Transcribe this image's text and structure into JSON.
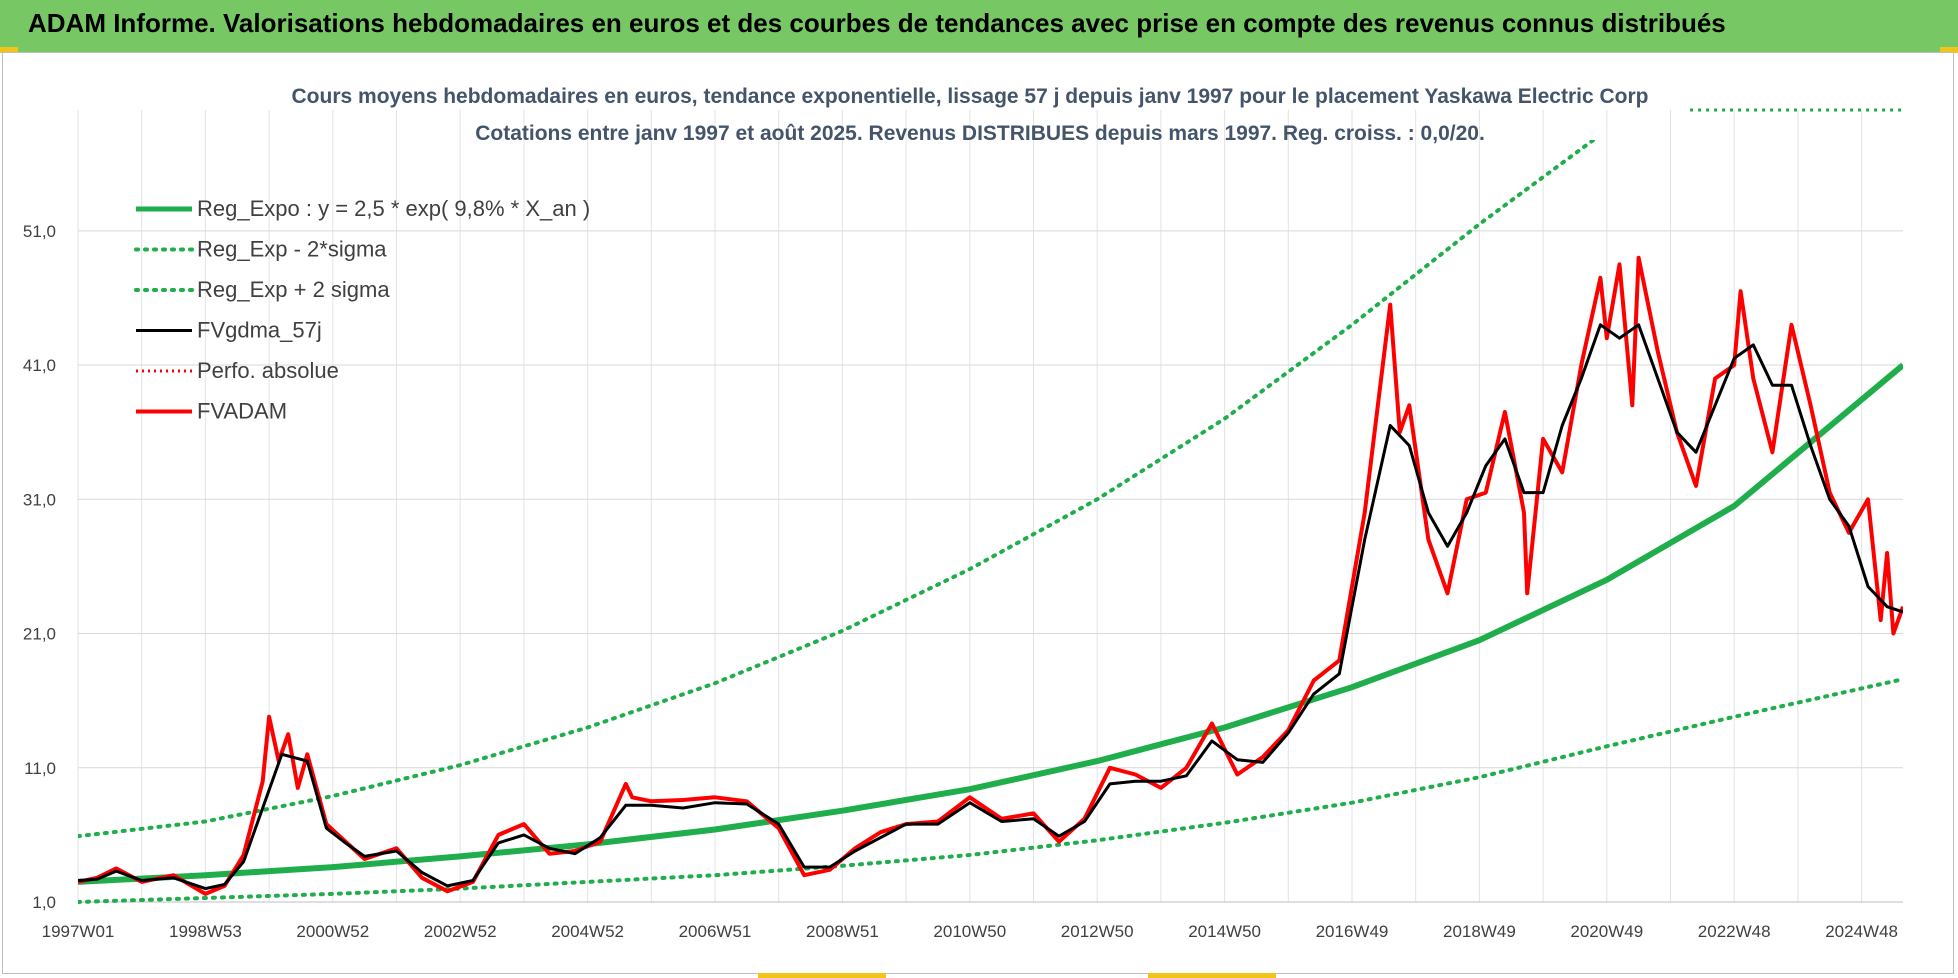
{
  "header": {
    "title": "ADAM Informe. Valorisations hebdomadaires en euros et des courbes de tendances avec prise en compte des revenus connus distribués"
  },
  "colors": {
    "banner": "#77c765",
    "green": "#1fae4b",
    "red": "#ff0000",
    "black": "#000000",
    "accent": "#f0c419"
  },
  "chart_data": {
    "type": "line",
    "title": "Cours moyens hebdomadaires en euros, tendance exponentielle, lissage 57 j depuis janv 1997  pour le placement Yaskawa Electric Corp",
    "subtitle": "Cotations entre janv 1997 et août 2025.  Revenus DISTRIBUES depuis mars 1997. Reg. croiss. : 0,0/20.",
    "xlabel": "",
    "ylabel": "",
    "ylim": [
      1,
      60
    ],
    "xlim": [
      1997.0,
      2025.65
    ],
    "yticks": [
      "1,0",
      "11,0",
      "21,0",
      "31,0",
      "41,0",
      "51,0"
    ],
    "ytick_values": [
      1,
      11,
      21,
      31,
      41,
      51
    ],
    "xticks": [
      "1997W01",
      "1998W53",
      "2000W52",
      "2002W52",
      "2004W52",
      "2006W51",
      "2008W51",
      "2010W50",
      "2012W50",
      "2014W50",
      "2016W49",
      "2018W49",
      "2020W49",
      "2022W48",
      "2024W48"
    ],
    "xtick_values": [
      1997.0,
      1999.0,
      2001.0,
      2003.0,
      2005.0,
      2007.0,
      2009.0,
      2011.0,
      2013.0,
      2015.0,
      2017.0,
      2019.0,
      2021.0,
      2023.0,
      2025.0
    ],
    "grid": true,
    "legend_position": "top-left",
    "series": [
      {
        "name": "Reg_Expo : y = 2,5 * exp( 9,8% *  X_an )",
        "style": "solid-green",
        "x": [
          1997.0,
          1999.0,
          2001.0,
          2003.0,
          2005.0,
          2007.0,
          2009.0,
          2011.0,
          2013.0,
          2015.0,
          2017.0,
          2019.0,
          2021.0,
          2023.0,
          2025.65
        ],
        "values": [
          2.5,
          3.0,
          3.6,
          4.4,
          5.3,
          6.4,
          7.8,
          9.4,
          11.5,
          14.0,
          17.0,
          20.5,
          25.0,
          30.5,
          41.0
        ]
      },
      {
        "name": "Reg_Exp - 2*sigma",
        "style": "dotted-green",
        "x": [
          1997.0,
          1999.0,
          2001.0,
          2003.0,
          2005.0,
          2007.0,
          2009.0,
          2011.0,
          2013.0,
          2015.0,
          2017.0,
          2019.0,
          2021.0,
          2023.0,
          2025.65
        ],
        "values": [
          1.0,
          1.3,
          1.6,
          2.0,
          2.5,
          3.0,
          3.7,
          4.5,
          5.6,
          6.9,
          8.4,
          10.3,
          12.6,
          14.8,
          17.6
        ]
      },
      {
        "name": "Reg_Exp + 2 sigma",
        "style": "dotted-green",
        "x": [
          1997.0,
          1999.0,
          2001.0,
          2003.0,
          2005.0,
          2007.0,
          2009.0,
          2011.0,
          2013.0,
          2015.0,
          2017.0,
          2019.0,
          2021.0,
          2023.0
        ],
        "values": [
          5.9,
          7.0,
          8.9,
          11.2,
          14.0,
          17.3,
          21.2,
          25.8,
          31.0,
          37.0,
          44.0,
          51.5,
          58.5,
          65.0
        ]
      },
      {
        "name": "FVgdma_57j",
        "style": "solid-black",
        "x": [
          1997.0,
          1997.3,
          1997.6,
          1998.0,
          1998.5,
          1999.0,
          1999.3,
          1999.6,
          1999.9,
          2000.2,
          2000.6,
          2000.9,
          2001.2,
          2001.5,
          2002.0,
          2002.4,
          2002.8,
          2003.2,
          2003.6,
          2004.0,
          2004.4,
          2004.8,
          2005.2,
          2005.6,
          2006.0,
          2006.5,
          2007.0,
          2007.5,
          2008.0,
          2008.4,
          2008.8,
          2009.2,
          2009.6,
          2010.0,
          2010.5,
          2011.0,
          2011.5,
          2012.0,
          2012.4,
          2012.8,
          2013.2,
          2013.6,
          2014.0,
          2014.4,
          2014.8,
          2015.2,
          2015.6,
          2016.0,
          2016.4,
          2016.8,
          2017.2,
          2017.6,
          2017.9,
          2018.2,
          2018.5,
          2018.8,
          2019.1,
          2019.4,
          2019.7,
          2020.0,
          2020.3,
          2020.6,
          2020.9,
          2021.2,
          2021.5,
          2021.8,
          2022.1,
          2022.4,
          2022.7,
          2023.0,
          2023.3,
          2023.6,
          2023.9,
          2024.2,
          2024.5,
          2024.8,
          2025.1,
          2025.4,
          2025.65
        ],
        "values": [
          2.6,
          2.7,
          3.3,
          2.6,
          2.8,
          2.0,
          2.3,
          4.0,
          8.0,
          12.0,
          11.5,
          6.5,
          5.4,
          4.4,
          4.8,
          3.2,
          2.2,
          2.6,
          5.4,
          6.0,
          5.0,
          4.6,
          5.8,
          8.2,
          8.2,
          8.0,
          8.4,
          8.3,
          6.8,
          3.6,
          3.6,
          4.8,
          5.8,
          6.8,
          6.8,
          8.4,
          7.0,
          7.2,
          5.9,
          7.0,
          9.8,
          10.0,
          10.0,
          10.4,
          13.0,
          11.6,
          11.4,
          13.6,
          16.5,
          18.0,
          28.0,
          36.5,
          35.0,
          30.0,
          27.5,
          30.0,
          33.5,
          35.5,
          31.5,
          31.5,
          36.5,
          40.0,
          44.0,
          43.0,
          44.0,
          40.0,
          36.0,
          34.5,
          38.0,
          41.5,
          42.5,
          39.5,
          39.5,
          35.0,
          31.0,
          29.0,
          24.5,
          23.0,
          22.6
        ]
      },
      {
        "name": "Perfo. absolue",
        "style": "dotted-red",
        "x": [],
        "values": []
      },
      {
        "name": "FVADAM",
        "style": "solid-red",
        "x": [
          1997.0,
          1997.3,
          1997.6,
          1998.0,
          1998.5,
          1999.0,
          1999.3,
          1999.6,
          1999.9,
          2000.0,
          2000.15,
          2000.3,
          2000.45,
          2000.6,
          2000.9,
          2001.2,
          2001.5,
          2002.0,
          2002.4,
          2002.8,
          2003.2,
          2003.6,
          2004.0,
          2004.4,
          2004.8,
          2005.2,
          2005.6,
          2005.7,
          2006.0,
          2006.5,
          2007.0,
          2007.5,
          2008.0,
          2008.4,
          2008.8,
          2009.2,
          2009.6,
          2010.0,
          2010.5,
          2011.0,
          2011.5,
          2012.0,
          2012.4,
          2012.8,
          2013.2,
          2013.6,
          2014.0,
          2014.4,
          2014.8,
          2015.2,
          2015.6,
          2016.0,
          2016.4,
          2016.8,
          2017.2,
          2017.6,
          2017.75,
          2017.9,
          2018.2,
          2018.5,
          2018.8,
          2019.1,
          2019.4,
          2019.7,
          2019.75,
          2020.0,
          2020.3,
          2020.6,
          2020.9,
          2021.0,
          2021.2,
          2021.4,
          2021.5,
          2021.8,
          2022.1,
          2022.4,
          2022.7,
          2023.0,
          2023.1,
          2023.3,
          2023.6,
          2023.9,
          2024.2,
          2024.5,
          2024.8,
          2025.1,
          2025.3,
          2025.4,
          2025.5,
          2025.65
        ],
        "values": [
          2.5,
          2.8,
          3.5,
          2.5,
          3.0,
          1.6,
          2.2,
          4.5,
          10.0,
          14.8,
          11.5,
          13.5,
          9.5,
          12.0,
          6.8,
          5.5,
          4.2,
          5.0,
          2.8,
          1.8,
          2.5,
          6.0,
          6.8,
          4.6,
          4.8,
          5.5,
          9.8,
          8.8,
          8.5,
          8.6,
          8.8,
          8.5,
          6.5,
          3.0,
          3.4,
          5.0,
          6.2,
          6.8,
          7.0,
          8.8,
          7.2,
          7.6,
          5.5,
          7.2,
          11.0,
          10.5,
          9.5,
          11.0,
          14.3,
          10.5,
          11.8,
          13.8,
          17.5,
          19.0,
          30.0,
          45.5,
          36.0,
          38.0,
          28.0,
          24.0,
          31.0,
          31.5,
          37.5,
          30.0,
          24.0,
          35.5,
          33.0,
          41.0,
          47.5,
          43.0,
          48.5,
          38.0,
          49.0,
          42.0,
          36.0,
          32.0,
          40.0,
          41.0,
          46.5,
          40.0,
          34.5,
          44.0,
          38.0,
          31.5,
          28.5,
          31.0,
          22.0,
          27.0,
          21.0,
          23.0
        ]
      }
    ]
  }
}
